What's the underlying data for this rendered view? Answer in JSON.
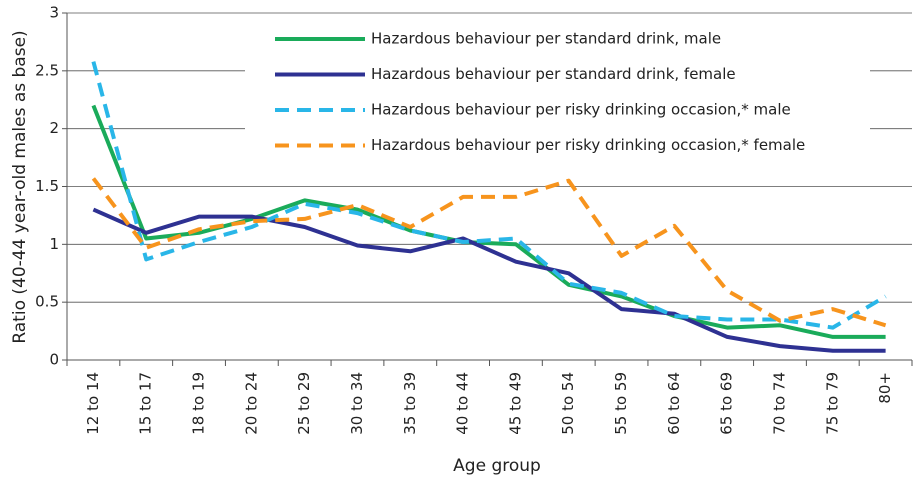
{
  "chart_data": {
    "type": "line",
    "x_label": "Age group",
    "y_label": "Ratio (40-44 year-old males as base)",
    "categories": [
      "12 to 14",
      "15 to 17",
      "18 to 19",
      "20 to 24",
      "25 to 29",
      "30 to 34",
      "35 to 39",
      "40 to 44",
      "45 to 49",
      "50 to 54",
      "55 to 59",
      "60 to 64",
      "65 to 69",
      "70 to 74",
      "75 to 79",
      "80+"
    ],
    "series": [
      {
        "name": "Hazardous behaviour per standard drink, male",
        "color": "#1aab5a",
        "dashed": false,
        "values": [
          2.2,
          1.05,
          1.1,
          1.22,
          1.38,
          1.3,
          1.12,
          1.02,
          1.0,
          0.65,
          0.55,
          0.38,
          0.28,
          0.3,
          0.2,
          0.2
        ]
      },
      {
        "name": "Hazardous behaviour per standard drink, female",
        "color": "#2e3192",
        "dashed": false,
        "values": [
          1.3,
          1.1,
          1.24,
          1.24,
          1.15,
          0.99,
          0.94,
          1.05,
          0.85,
          0.75,
          0.44,
          0.4,
          0.2,
          0.12,
          0.08,
          0.08
        ]
      },
      {
        "name": "Hazardous behaviour per risky drinking occasion,* male",
        "color": "#29b6e8",
        "dashed": true,
        "values": [
          2.58,
          0.87,
          1.02,
          1.15,
          1.35,
          1.27,
          1.12,
          1.02,
          1.05,
          0.66,
          0.58,
          0.38,
          0.35,
          0.35,
          0.28,
          0.55
        ]
      },
      {
        "name": "Hazardous behaviour per risky drinking occasion,* female",
        "color": "#f7941d",
        "dashed": true,
        "values": [
          1.57,
          0.97,
          1.13,
          1.2,
          1.22,
          1.34,
          1.15,
          1.41,
          1.41,
          1.55,
          0.9,
          1.16,
          0.6,
          0.34,
          0.44,
          0.3
        ]
      }
    ],
    "ylim": [
      0,
      3
    ],
    "yticks": [
      0,
      0.5,
      1,
      1.5,
      2,
      2.5,
      3
    ],
    "grid": true,
    "legend": "top"
  }
}
